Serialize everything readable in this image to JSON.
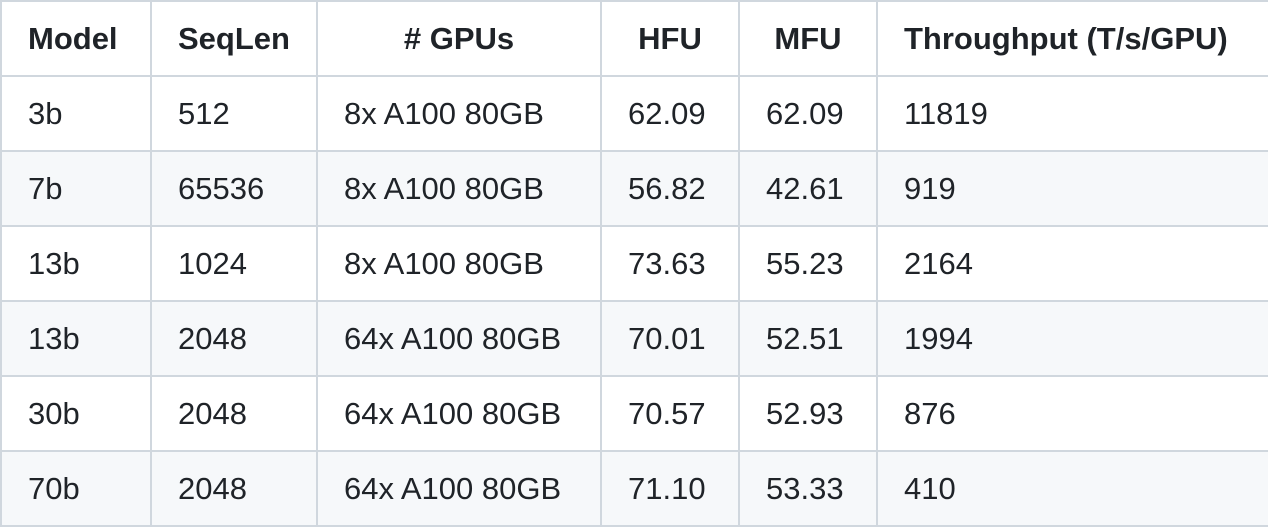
{
  "table": {
    "headers": [
      "Model",
      "SeqLen",
      "# GPUs",
      "HFU",
      "MFU",
      "Throughput (T/s/GPU)"
    ],
    "rows": [
      [
        "3b",
        "512",
        "8x A100 80GB",
        "62.09",
        "62.09",
        "11819"
      ],
      [
        "7b",
        "65536",
        "8x A100 80GB",
        "56.82",
        "42.61",
        "919"
      ],
      [
        "13b",
        "1024",
        "8x A100 80GB",
        "73.63",
        "55.23",
        "2164"
      ],
      [
        "13b",
        "2048",
        "64x A100 80GB",
        "70.01",
        "52.51",
        "1994"
      ],
      [
        "30b",
        "2048",
        "64x A100 80GB",
        "70.57",
        "52.93",
        "876"
      ],
      [
        "70b",
        "2048",
        "64x A100 80GB",
        "71.10",
        "53.33",
        "410"
      ]
    ]
  },
  "colors": {
    "border": "#d0d7de",
    "stripe": "#f6f8fa",
    "text": "#1f2328"
  }
}
